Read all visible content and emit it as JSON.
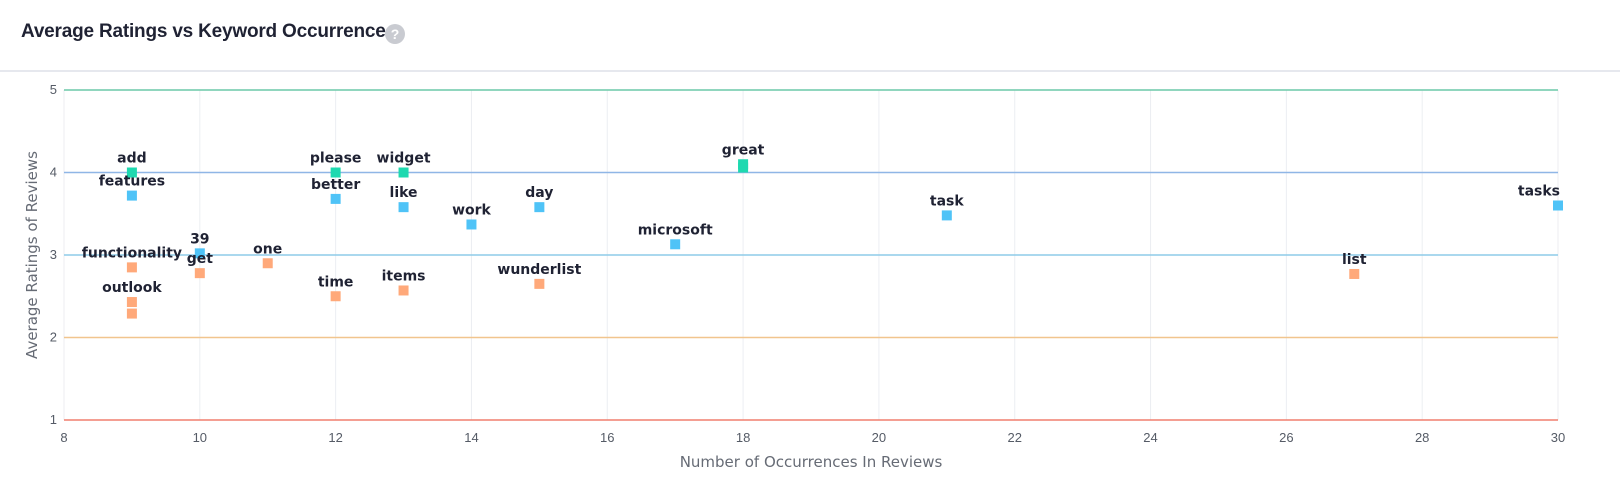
{
  "header": {
    "title": "Average Ratings vs Keyword Occurrence",
    "help_icon": "question-circle-icon"
  },
  "chart_data": {
    "type": "scatter",
    "title": "Average Ratings vs Keyword Occurrence",
    "xlabel": "Number of Occurrences In Reviews",
    "ylabel": "Average Ratings of Reviews",
    "xlim": [
      8,
      30
    ],
    "ylim": [
      1,
      5
    ],
    "x_ticks": [
      "8",
      "10",
      "12",
      "14",
      "16",
      "18",
      "20",
      "22",
      "24",
      "26",
      "28",
      "30"
    ],
    "y_ticks": [
      "1",
      "2",
      "3",
      "4",
      "5"
    ],
    "grid": "vertical",
    "reference_lines": [
      {
        "y": 5,
        "color": "#6cc9a8"
      },
      {
        "y": 4,
        "color": "#8fb6e6"
      },
      {
        "y": 3,
        "color": "#8ecbe8"
      },
      {
        "y": 2,
        "color": "#f1c58e"
      },
      {
        "y": 1,
        "color": "#f07f6e"
      }
    ],
    "colors": {
      "high": "#1ed9b0",
      "mid": "#4fc3f7",
      "low": "#ffa97a"
    },
    "points": [
      {
        "label": "add",
        "x": 9,
        "y": 4.0,
        "group": "high"
      },
      {
        "label": "features",
        "x": 9,
        "y": 3.72,
        "group": "mid"
      },
      {
        "label": "functionality",
        "x": 9,
        "y": 2.85,
        "group": "low"
      },
      {
        "label": "outlook",
        "x": 9,
        "y": 2.43,
        "group": "low"
      },
      {
        "label": "",
        "x": 9,
        "y": 2.29,
        "group": "low"
      },
      {
        "label": "39",
        "x": 10,
        "y": 3.02,
        "group": "mid"
      },
      {
        "label": "get",
        "x": 10,
        "y": 2.78,
        "group": "low"
      },
      {
        "label": "one",
        "x": 11,
        "y": 2.9,
        "group": "low"
      },
      {
        "label": "please",
        "x": 12,
        "y": 4.0,
        "group": "high"
      },
      {
        "label": "better",
        "x": 12,
        "y": 3.68,
        "group": "mid"
      },
      {
        "label": "time",
        "x": 12,
        "y": 2.5,
        "group": "low"
      },
      {
        "label": "widget",
        "x": 13,
        "y": 4.0,
        "group": "high"
      },
      {
        "label": "like",
        "x": 13,
        "y": 3.58,
        "group": "mid"
      },
      {
        "label": "items",
        "x": 13,
        "y": 2.57,
        "group": "low"
      },
      {
        "label": "work",
        "x": 14,
        "y": 3.37,
        "group": "mid"
      },
      {
        "label": "day",
        "x": 15,
        "y": 3.58,
        "group": "mid"
      },
      {
        "label": "wunderlist",
        "x": 15,
        "y": 2.65,
        "group": "low"
      },
      {
        "label": "microsoft",
        "x": 17,
        "y": 3.13,
        "group": "mid"
      },
      {
        "label": "great",
        "x": 18,
        "y": 4.1,
        "group": "high"
      },
      {
        "label": "",
        "x": 18,
        "y": 4.06,
        "group": "high"
      },
      {
        "label": "task",
        "x": 21,
        "y": 3.48,
        "group": "mid"
      },
      {
        "label": "list",
        "x": 27,
        "y": 2.77,
        "group": "low"
      },
      {
        "label": "tasks",
        "x": 30,
        "y": 3.6,
        "group": "mid"
      }
    ]
  }
}
